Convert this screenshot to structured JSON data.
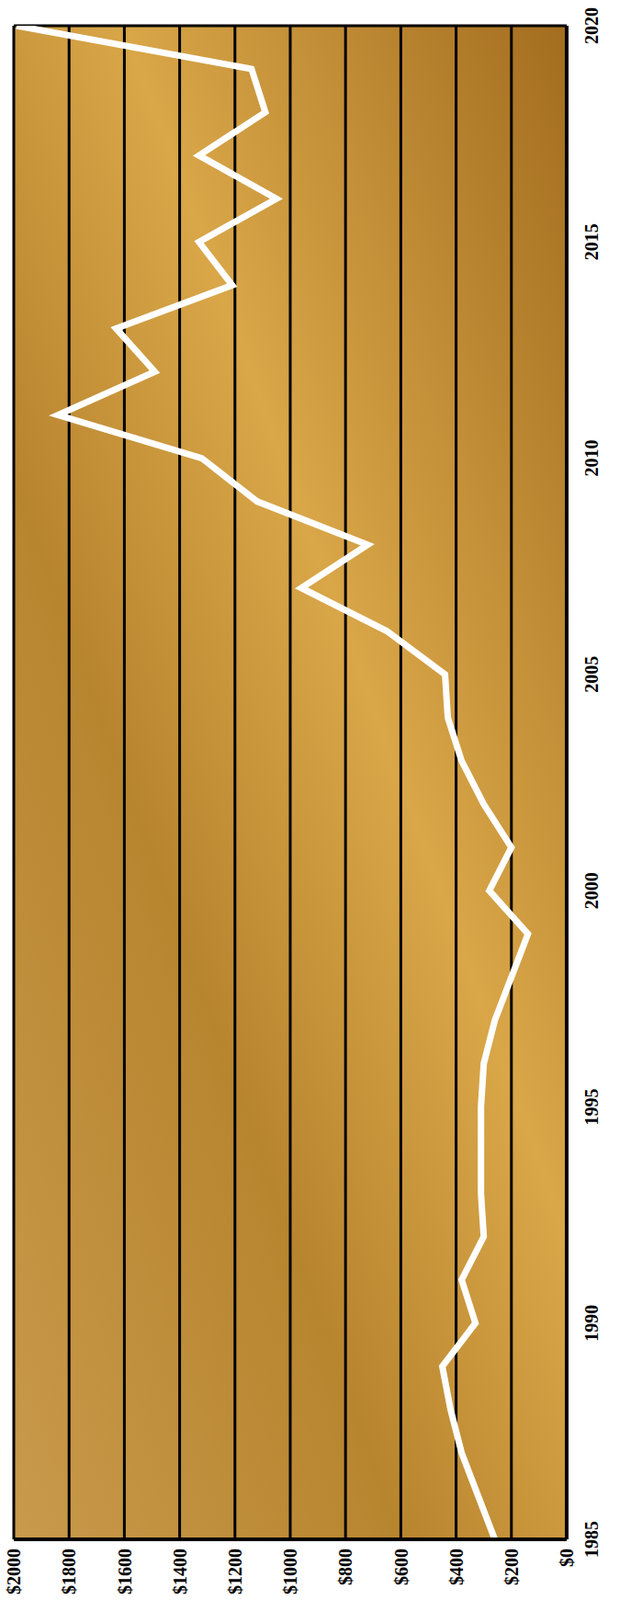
{
  "chart_data": {
    "type": "line",
    "x": [
      1985,
      1986,
      1987,
      1988,
      1989,
      1990,
      1991,
      1992,
      1993,
      1994,
      1995,
      1996,
      1997,
      1998,
      1999,
      2000,
      2001,
      2002,
      2003,
      2004,
      2005,
      2006,
      2007,
      2008,
      2009,
      2010,
      2011,
      2012,
      2013,
      2014,
      2015,
      2016,
      2017,
      2018,
      2019,
      2020
    ],
    "values": [
      260,
      320,
      380,
      420,
      450,
      330,
      380,
      300,
      310,
      310,
      310,
      300,
      260,
      200,
      140,
      280,
      200,
      300,
      380,
      430,
      440,
      650,
      960,
      720,
      1120,
      1320,
      1840,
      1490,
      1630,
      1210,
      1330,
      1050,
      1330,
      1090,
      1140,
      1990
    ],
    "color": "#ffffff",
    "xlim": [
      1985,
      2020
    ],
    "xticks": [
      1985,
      1990,
      1995,
      2000,
      2005,
      2010,
      2015,
      2020
    ],
    "ylim": [
      0,
      2000
    ],
    "yticks": [
      {
        "value": 0,
        "label": "$0"
      },
      {
        "value": 200,
        "label": "$200"
      },
      {
        "value": 400,
        "label": "$400"
      },
      {
        "value": 600,
        "label": "$600"
      },
      {
        "value": 800,
        "label": "$800"
      },
      {
        "value": 1000,
        "label": "$1000"
      },
      {
        "value": 1200,
        "label": "$1200"
      },
      {
        "value": 1400,
        "label": "$1400"
      },
      {
        "value": 1600,
        "label": "$1600"
      },
      {
        "value": 1800,
        "label": "$1800"
      },
      {
        "value": 2000,
        "label": "$2000"
      }
    ],
    "grid": true
  }
}
